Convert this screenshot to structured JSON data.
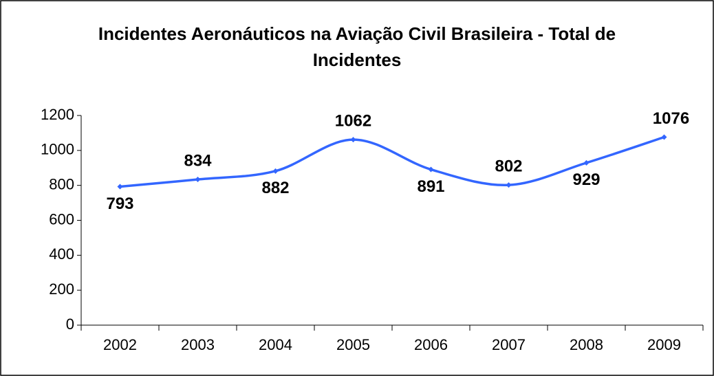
{
  "chart_data": {
    "type": "line",
    "title": "Incidentes Aeronáuticos na Aviação Civil Brasileira - Total de Incidentes",
    "categories": [
      "2002",
      "2003",
      "2004",
      "2005",
      "2006",
      "2007",
      "2008",
      "2009"
    ],
    "series": [
      {
        "name": "Total de Incidentes",
        "color": "#3366ff",
        "values": [
          793,
          834,
          882,
          1062,
          891,
          802,
          929,
          1076
        ]
      }
    ],
    "ylim": [
      0,
      1200
    ],
    "yticks": [
      0,
      200,
      400,
      600,
      800,
      1000,
      1200
    ],
    "grid": false
  }
}
